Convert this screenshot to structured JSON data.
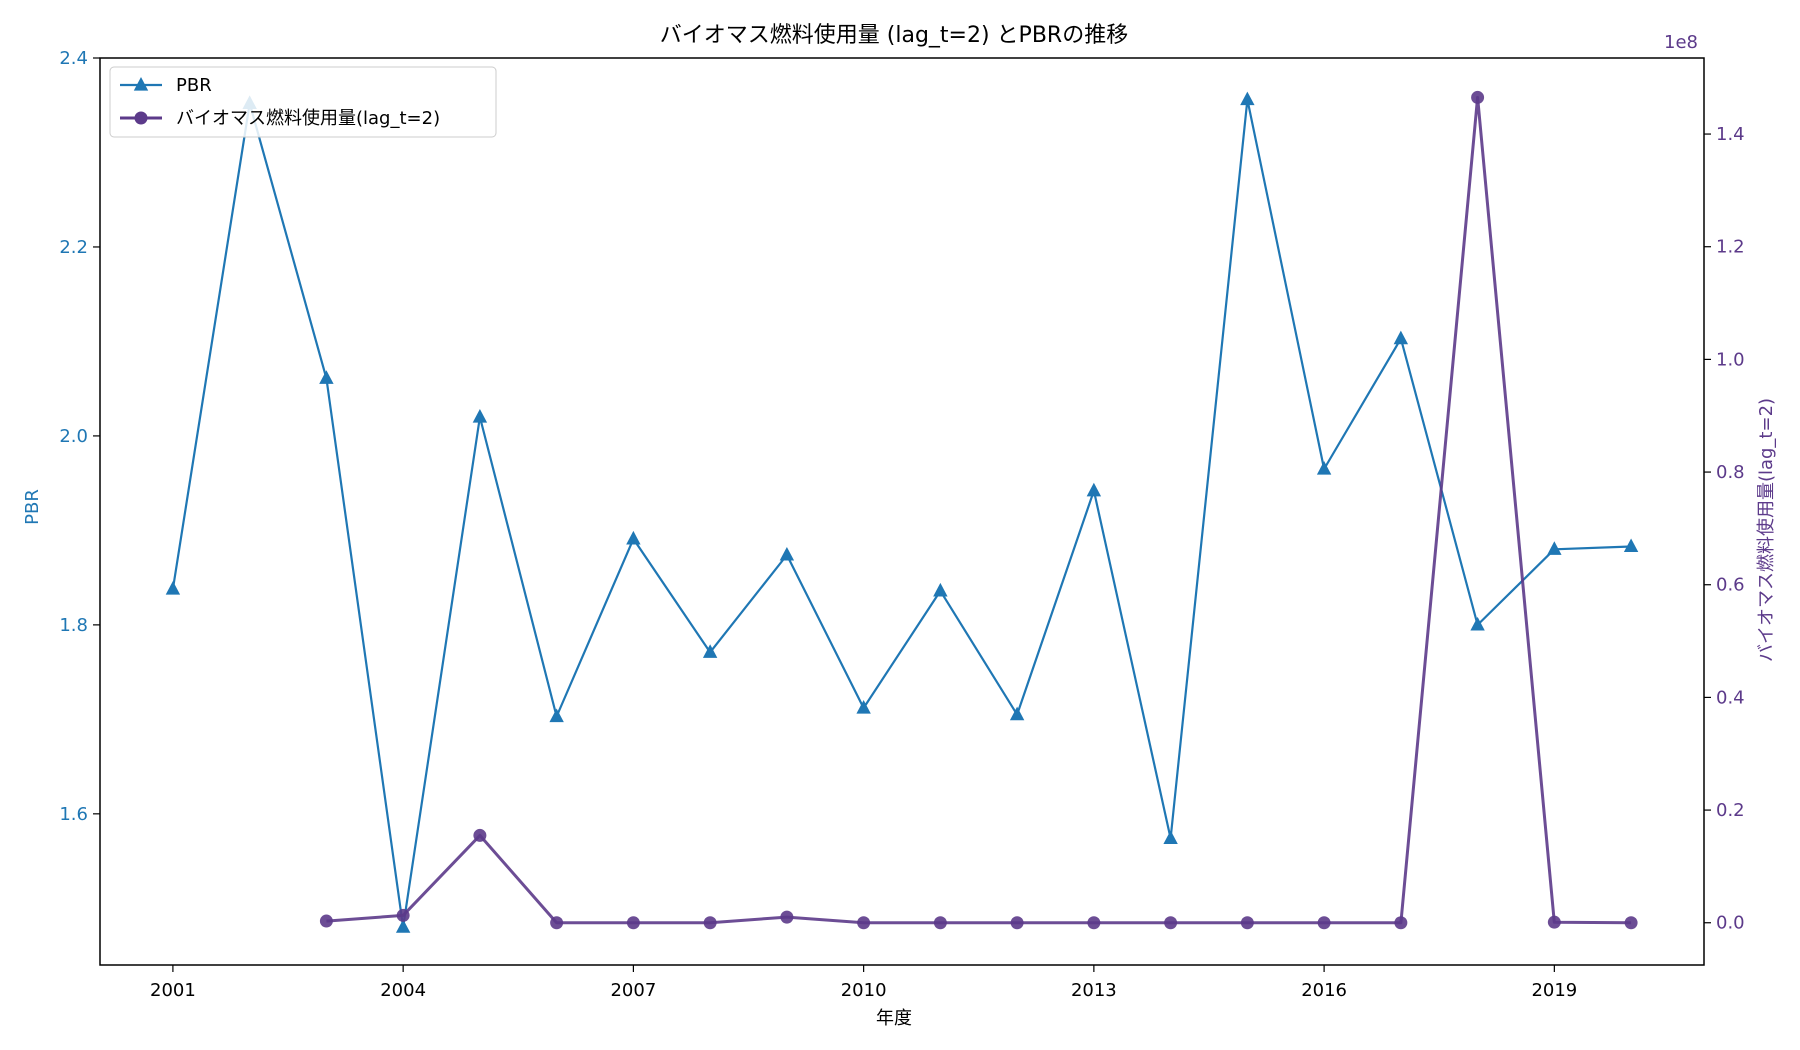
{
  "chart_data": {
    "type": "line",
    "title": "バイオマス燃料使用量 (lag_t=2) とPBRの推移",
    "xlabel": "年度",
    "ylabel_left": "PBR",
    "ylabel_right": "バイオマス燃料使用量(lag_t=2)",
    "right_axis_offset_text": "1e8",
    "x_ticks": [
      2001,
      2004,
      2007,
      2010,
      2013,
      2016,
      2019
    ],
    "xlim": [
      2000.05,
      2020.95
    ],
    "ylim_left": [
      1.44,
      2.4
    ],
    "ylim_right": [
      -0.075,
      1.535
    ],
    "y_ticks_left": [
      "1.6",
      "1.8",
      "2.0",
      "2.2",
      "2.4"
    ],
    "y_ticks_right": [
      "0.0",
      "0.2",
      "0.4",
      "0.6",
      "0.8",
      "1.0",
      "1.2",
      "1.4"
    ],
    "legend_placement": "upper-left",
    "series": [
      {
        "name": "PBR",
        "axis": "left",
        "marker": "triangle",
        "color": "#1f77b4",
        "x": [
          2001,
          2002,
          2003,
          2004,
          2005,
          2006,
          2007,
          2008,
          2009,
          2010,
          2011,
          2012,
          2013,
          2014,
          2015,
          2016,
          2017,
          2018,
          2019,
          2020
        ],
        "values": [
          1.838,
          2.352,
          2.061,
          1.48,
          2.02,
          1.703,
          1.891,
          1.771,
          1.874,
          1.712,
          1.836,
          1.705,
          1.942,
          1.574,
          2.356,
          1.965,
          2.103,
          1.8,
          1.88,
          1.883
        ]
      },
      {
        "name": "バイオマス燃料使用量(lag_t=2)",
        "axis": "right",
        "marker": "circle",
        "color": "#5c3a8a",
        "x": [
          2003,
          2004,
          2005,
          2006,
          2007,
          2008,
          2009,
          2010,
          2011,
          2012,
          2013,
          2014,
          2015,
          2016,
          2017,
          2018,
          2019,
          2020
        ],
        "values": [
          0.003,
          0.013,
          0.155,
          0.0,
          0.0,
          0.0,
          0.01,
          0.0,
          0.0,
          0.0,
          0.0,
          0.0,
          0.0,
          0.0,
          0.0,
          1.465,
          0.001,
          0.0
        ]
      }
    ]
  },
  "colors": {
    "left_axis": "#1f77b4",
    "right_axis": "#5c3a8a",
    "pbr_line": "#1f77b4",
    "biomass_line": "#5c3a8a"
  }
}
